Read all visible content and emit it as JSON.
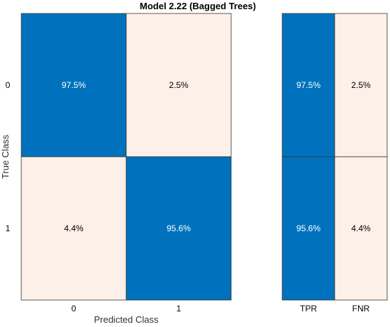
{
  "chart_data": {
    "type": "heatmap",
    "title": "Model 2.22 (Bagged Trees)",
    "xlabel": "Predicted Class",
    "ylabel": "True Class",
    "row_labels": [
      "0",
      "1"
    ],
    "col_labels": [
      "0",
      "1"
    ],
    "values": [
      [
        97.5,
        2.5
      ],
      [
        4.4,
        95.6
      ]
    ],
    "cell_text": [
      [
        "97.5%",
        "2.5%"
      ],
      [
        "4.4%",
        "95.6%"
      ]
    ],
    "summary": {
      "col_labels": [
        "TPR",
        "FNR"
      ],
      "values": [
        [
          97.5,
          2.5
        ],
        [
          95.6,
          4.4
        ]
      ],
      "cell_text": [
        [
          "97.5%",
          "2.5%"
        ],
        [
          "95.6%",
          "4.4%"
        ]
      ]
    },
    "colors": {
      "high": "#0072bd",
      "low": "#fdf0e8",
      "text_on_high": "#ffffff",
      "text_on_low": "#000000"
    }
  }
}
